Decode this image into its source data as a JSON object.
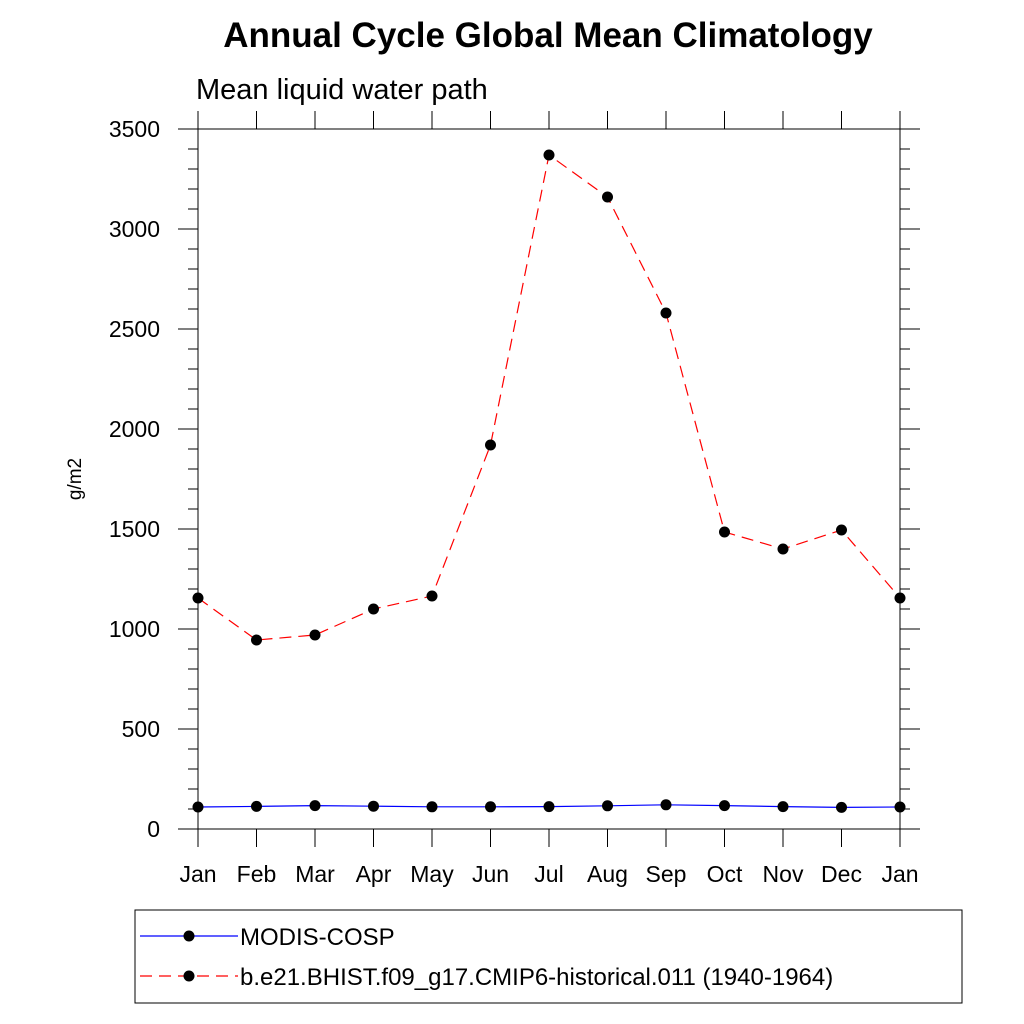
{
  "chart_data": {
    "type": "line",
    "title": "Annual Cycle Global Mean Climatology",
    "subtitle": "Mean liquid water path",
    "xlabel": "",
    "ylabel": "g/m2",
    "categories": [
      "Jan",
      "Feb",
      "Mar",
      "Apr",
      "May",
      "Jun",
      "Jul",
      "Aug",
      "Sep",
      "Oct",
      "Nov",
      "Dec",
      "Jan"
    ],
    "ylim": [
      0,
      3500
    ],
    "yticks": [
      0,
      500,
      1000,
      1500,
      2000,
      2500,
      3000,
      3500
    ],
    "ytick_labels": [
      "0",
      "500",
      "1000",
      "1500",
      "2000",
      "2500",
      "3000",
      "3500"
    ],
    "legend_position": "bottom",
    "series": [
      {
        "name": "MODIS-COSP",
        "color": "#0000ff",
        "line_style": "solid",
        "marker": "filled-circle",
        "values": [
          110,
          113,
          117,
          114,
          111,
          111,
          112,
          116,
          121,
          117,
          112,
          108,
          110
        ]
      },
      {
        "name": "b.e21.BHIST.f09_g17.CMIP6-historical.011 (1940-1964)",
        "color": "#ff0000",
        "line_style": "dashed",
        "marker": "filled-circle",
        "values": [
          1155,
          945,
          970,
          1100,
          1165,
          1920,
          3370,
          3160,
          2580,
          1485,
          1400,
          1495,
          1155
        ]
      }
    ]
  }
}
